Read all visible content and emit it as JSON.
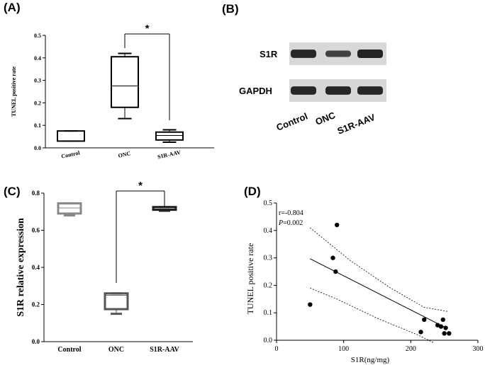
{
  "panels": {
    "A": "(A)",
    "B": "(B)",
    "C": "(C)",
    "D": "(D)"
  },
  "chart_data": [
    {
      "panel": "(A)",
      "type": "box",
      "ylabel": "TUNEL positive rate",
      "ylim": [
        0,
        0.5
      ],
      "yticks": [
        "0.0",
        "0.1",
        "0.2",
        "0.3",
        "0.4",
        "0.5"
      ],
      "categories": [
        "Control",
        "ONC",
        "S1R-AAV"
      ],
      "boxes": [
        {
          "min": 0.03,
          "q1": 0.03,
          "median": 0.03,
          "q3": 0.075,
          "max": 0.075
        },
        {
          "min": 0.13,
          "q1": 0.18,
          "median": 0.275,
          "q3": 0.405,
          "max": 0.42
        },
        {
          "min": 0.025,
          "q1": 0.035,
          "median": 0.055,
          "q3": 0.07,
          "max": 0.08
        }
      ],
      "significance": {
        "from": "ONC",
        "to": "S1R-AAV",
        "label": "*"
      }
    },
    {
      "panel": "(B)",
      "type": "western-blot",
      "rows": [
        "S1R",
        "GAPDH"
      ],
      "lanes": [
        "Control",
        "ONC",
        "S1R-AAV"
      ],
      "intensities": {
        "S1R": [
          0.85,
          0.55,
          0.9
        ],
        "GAPDH": [
          0.85,
          0.85,
          0.85
        ]
      },
      "colors": {
        "blot_bg": "#d8d8d8",
        "band": "#1a1a1a"
      }
    },
    {
      "panel": "(C)",
      "type": "box",
      "ylabel": "S1R relative expression",
      "ylim": [
        0,
        0.8
      ],
      "yticks": [
        "0.0",
        "0.2",
        "0.4",
        "0.6",
        "0.8"
      ],
      "categories": [
        "Control",
        "ONC",
        "S1R-AAV"
      ],
      "boxes": [
        {
          "min": 0.68,
          "q1": 0.69,
          "median": 0.72,
          "q3": 0.745,
          "max": 0.745,
          "color": "#888888"
        },
        {
          "min": 0.15,
          "q1": 0.175,
          "median": 0.25,
          "q3": 0.26,
          "max": 0.26,
          "color": "#555555"
        },
        {
          "min": 0.705,
          "q1": 0.71,
          "median": 0.715,
          "q3": 0.725,
          "max": 0.725,
          "color": "#222222"
        }
      ],
      "significance": {
        "from": "ONC",
        "to": "S1R-AAV",
        "label": "*"
      }
    },
    {
      "panel": "(D)",
      "type": "scatter",
      "xlabel": "S1R(ng/mg)",
      "ylabel": "TUNEL positive rate",
      "xlim": [
        0,
        300
      ],
      "ylim": [
        0,
        0.5
      ],
      "xticks": [
        "0",
        "100",
        "200",
        "300"
      ],
      "yticks": [
        "0.0",
        "0.1",
        "0.2",
        "0.3",
        "0.4",
        "0.5"
      ],
      "points": [
        {
          "x": 50,
          "y": 0.13
        },
        {
          "x": 84,
          "y": 0.3
        },
        {
          "x": 88,
          "y": 0.25
        },
        {
          "x": 90,
          "y": 0.42
        },
        {
          "x": 215,
          "y": 0.03
        },
        {
          "x": 220,
          "y": 0.075
        },
        {
          "x": 240,
          "y": 0.055
        },
        {
          "x": 245,
          "y": 0.05
        },
        {
          "x": 248,
          "y": 0.075
        },
        {
          "x": 250,
          "y": 0.025
        },
        {
          "x": 252,
          "y": 0.045
        },
        {
          "x": 257,
          "y": 0.025
        }
      ],
      "fit": {
        "x1": 50,
        "y1": 0.297,
        "x2": 255,
        "y2": 0.042
      },
      "ci_upper": [
        [
          50,
          0.41
        ],
        [
          110,
          0.29
        ],
        [
          170,
          0.19
        ],
        [
          220,
          0.12
        ],
        [
          255,
          0.105
        ]
      ],
      "ci_lower": [
        [
          50,
          0.19
        ],
        [
          90,
          0.15
        ],
        [
          150,
          0.08
        ],
        [
          210,
          0.02
        ],
        [
          235,
          -0.01
        ]
      ],
      "annotation_r": "r=-0.804",
      "annotation_p_label": "P",
      "annotation_p_value": "=0.002"
    }
  ]
}
